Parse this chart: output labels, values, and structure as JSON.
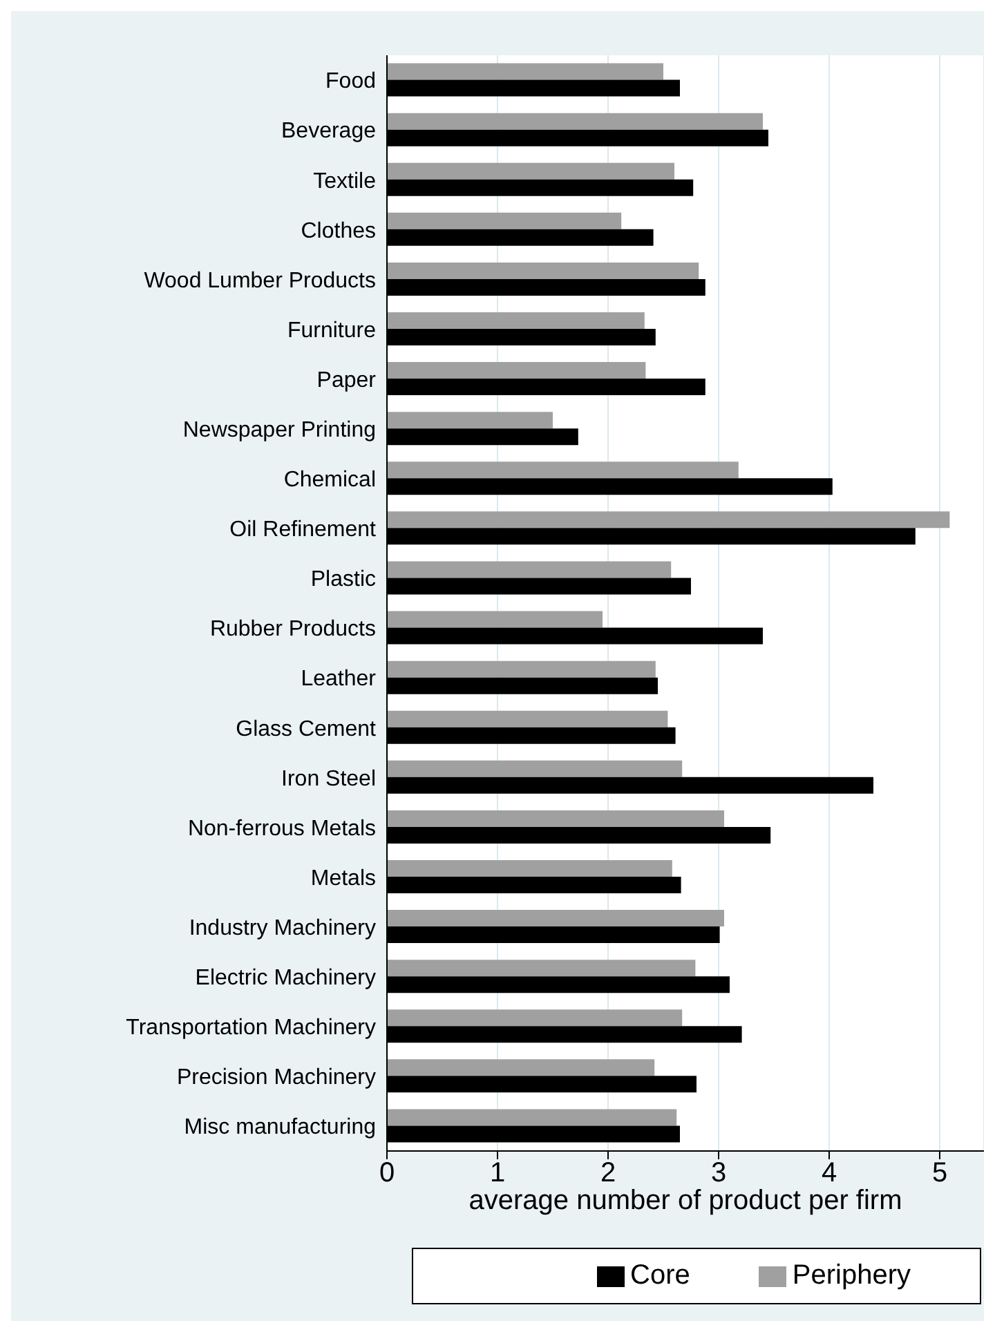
{
  "chart_data": {
    "type": "bar",
    "orientation": "horizontal",
    "xlabel": "average number of product per firm",
    "categories": [
      "Food",
      "Beverage",
      "Textile",
      "Clothes",
      "Wood Lumber Products",
      "Furniture",
      "Paper",
      "Newspaper Printing",
      "Chemical",
      "Oil Refinement",
      "Plastic",
      "Rubber Products",
      "Leather",
      "Glass Cement",
      "Iron Steel",
      "Non-ferrous Metals",
      "Metals",
      "Industry Machinery",
      "Electric Machinery",
      "Transportation Machinery",
      "Precision Machinery",
      "Misc manufacturing"
    ],
    "series": [
      {
        "name": "Periphery",
        "color": "#a0a0a0",
        "values": [
          2.5,
          3.4,
          2.6,
          2.12,
          2.82,
          2.33,
          2.34,
          1.5,
          3.18,
          5.09,
          2.57,
          1.95,
          2.43,
          2.54,
          2.67,
          3.05,
          2.58,
          3.05,
          2.79,
          2.67,
          2.42,
          2.62
        ]
      },
      {
        "name": "Core",
        "color": "#000000",
        "values": [
          2.65,
          3.45,
          2.77,
          2.41,
          2.88,
          2.43,
          2.88,
          1.73,
          4.03,
          4.78,
          2.75,
          3.4,
          2.45,
          2.61,
          4.4,
          3.47,
          2.66,
          3.01,
          3.1,
          3.21,
          2.8,
          2.65
        ]
      }
    ],
    "xlim": [
      0,
      5.4
    ],
    "xticks": [
      0,
      1,
      2,
      3,
      4,
      5
    ],
    "grid": "x",
    "legend": "bottom"
  }
}
